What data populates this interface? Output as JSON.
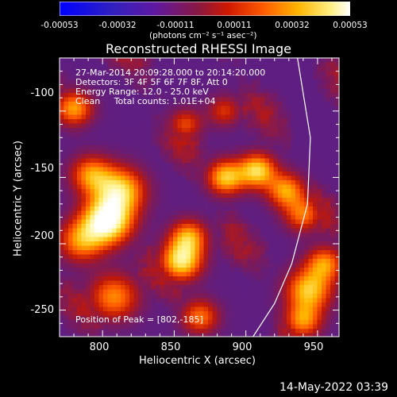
{
  "colorbar": {
    "ticks": [
      "-0.00053",
      "-0.00032",
      "-0.00011",
      "0.00011",
      "0.00032",
      "0.00053"
    ],
    "unit_label": "(photons cm⁻² s⁻¹ asec⁻²)",
    "range": [
      -0.00053,
      0.00053
    ]
  },
  "chart_data": {
    "type": "heatmap",
    "title": "Reconstructed RHESSI Image",
    "xlabel": "Heliocentric X (arcsec)",
    "ylabel": "Heliocentric Y (arcsec)",
    "xlim": [
      770,
      965
    ],
    "ylim": [
      -270,
      -60
    ],
    "xticks": [
      800,
      850,
      900,
      950
    ],
    "yticks": [
      -100,
      -150,
      -200,
      -250
    ],
    "annotations": {
      "time_range": "27-Mar-2014 20:09:28.000 to 20:14:20.000",
      "detectors": "Detectors: 3F 4F 5F 6F 7F 8F, Att 0",
      "energy": "Energy Range: 12.0 - 25.0 keV",
      "method": "Clean     Total counts: 1.01E+04",
      "peak": "Position of Peak = [802,-185]"
    },
    "emission_sources": [
      {
        "x": 803,
        "y": -183,
        "amplitude": 1.0,
        "sigma_arcsec": 12
      },
      {
        "x": 812,
        "y": -160,
        "amplitude": 0.75,
        "sigma_arcsec": 12
      },
      {
        "x": 792,
        "y": -148,
        "amplitude": 0.55,
        "sigma_arcsec": 10
      },
      {
        "x": 785,
        "y": -198,
        "amplitude": 0.55,
        "sigma_arcsec": 11
      },
      {
        "x": 808,
        "y": -240,
        "amplitude": 0.55,
        "sigma_arcsec": 12
      },
      {
        "x": 780,
        "y": -98,
        "amplitude": 0.6,
        "sigma_arcsec": 9
      },
      {
        "x": 855,
        "y": -213,
        "amplitude": 0.8,
        "sigma_arcsec": 10
      },
      {
        "x": 860,
        "y": -195,
        "amplitude": 0.6,
        "sigma_arcsec": 9
      },
      {
        "x": 868,
        "y": -255,
        "amplitude": 0.5,
        "sigma_arcsec": 9
      },
      {
        "x": 886,
        "y": -150,
        "amplitude": 0.7,
        "sigma_arcsec": 9
      },
      {
        "x": 908,
        "y": -145,
        "amplitude": 0.75,
        "sigma_arcsec": 9
      },
      {
        "x": 928,
        "y": -160,
        "amplitude": 0.6,
        "sigma_arcsec": 9
      },
      {
        "x": 940,
        "y": -178,
        "amplitude": 0.5,
        "sigma_arcsec": 9
      },
      {
        "x": 944,
        "y": -235,
        "amplitude": 0.7,
        "sigma_arcsec": 11
      },
      {
        "x": 955,
        "y": -215,
        "amplitude": 0.55,
        "sigma_arcsec": 9
      },
      {
        "x": 940,
        "y": -258,
        "amplitude": 0.55,
        "sigma_arcsec": 9
      },
      {
        "x": 858,
        "y": -110,
        "amplitude": 0.4,
        "sigma_arcsec": 8
      },
      {
        "x": 885,
        "y": -100,
        "amplitude": 0.35,
        "sigma_arcsec": 8
      }
    ],
    "limb_curve": [
      [
        936,
        -60
      ],
      [
        945,
        -120
      ],
      [
        943,
        -170
      ],
      [
        932,
        -215
      ],
      [
        920,
        -245
      ],
      [
        905,
        -270
      ]
    ]
  },
  "footer": {
    "date": "14-May-2022 03:39"
  },
  "colors": {
    "limb": "#ffffff",
    "colormap": [
      "#0000ff",
      "#3b2a9e",
      "#55208f",
      "#7a1a5c",
      "#c01808",
      "#ff5a00",
      "#ffb600",
      "#fff07a",
      "#ffffff"
    ]
  }
}
